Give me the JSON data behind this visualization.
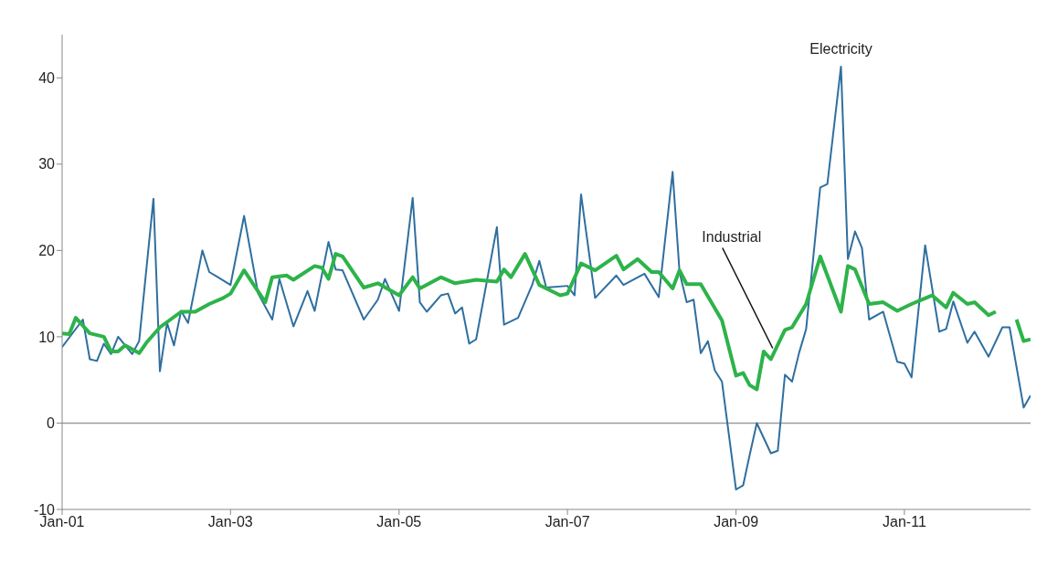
{
  "chart_data": {
    "type": "line",
    "xlim": [
      "2001-01",
      "2012-07"
    ],
    "xticks": [
      {
        "value": "2001-01",
        "label": "Jan-01"
      },
      {
        "value": "2003-01",
        "label": "Jan-03"
      },
      {
        "value": "2005-01",
        "label": "Jan-05"
      },
      {
        "value": "2007-01",
        "label": "Jan-07"
      },
      {
        "value": "2009-01",
        "label": "Jan-09"
      },
      {
        "value": "2011-01",
        "label": "Jan-11"
      }
    ],
    "ylim": [
      -10,
      45
    ],
    "yticks": [
      -10,
      0,
      10,
      20,
      30,
      40
    ],
    "ref_lines": [
      {
        "axis": "y",
        "value": 0,
        "color": "#9a9a9a"
      }
    ],
    "series": [
      {
        "name": "Electricity",
        "color": "#2f6f9f",
        "x": [
          "2001-01",
          "2001-04",
          "2001-05",
          "2001-06",
          "2001-07",
          "2001-08",
          "2001-09",
          "2001-11",
          "2001-12",
          "2002-02",
          "2002-03",
          "2002-04",
          "2002-05",
          "2002-06",
          "2002-07",
          "2002-09",
          "2002-10",
          "2002-11",
          "2003-01",
          "2003-03",
          "2003-05",
          "2003-07",
          "2003-08",
          "2003-10",
          "2003-12",
          "2004-01",
          "2004-03",
          "2004-04",
          "2004-05",
          "2004-08",
          "2004-10",
          "2004-11",
          "2005-01",
          "2005-03",
          "2005-04",
          "2005-05",
          "2005-07",
          "2005-08",
          "2005-09",
          "2005-10",
          "2005-11",
          "2005-12",
          "2006-03",
          "2006-04",
          "2006-06",
          "2006-08",
          "2006-09",
          "2006-10",
          "2007-01",
          "2007-02",
          "2007-03",
          "2007-05",
          "2007-08",
          "2007-09",
          "2007-12",
          "2008-02",
          "2008-04",
          "2008-05",
          "2008-06",
          "2008-07",
          "2008-08",
          "2008-09",
          "2008-10",
          "2008-11",
          "2009-01",
          "2009-02",
          "2009-03",
          "2009-04",
          "2009-06",
          "2009-07",
          "2009-08",
          "2009-09",
          "2009-10",
          "2009-11",
          "2010-01",
          "2010-02",
          "2010-04",
          "2010-05",
          "2010-06",
          "2010-07",
          "2010-08",
          "2010-10",
          "2010-12",
          "2011-01",
          "2011-02",
          "2011-04",
          "2011-06",
          "2011-07",
          "2011-08",
          "2011-10",
          "2011-11",
          "2012-01",
          "2012-03",
          "2012-04",
          "2012-06",
          "2012-07"
        ],
        "values": [
          8.8,
          12,
          7.4,
          7.2,
          9.2,
          8,
          10,
          8,
          9.5,
          26,
          6,
          11.6,
          9,
          13,
          11.6,
          20,
          17.5,
          17,
          16,
          24,
          15,
          12,
          16.7,
          11.2,
          15.3,
          13,
          21,
          17.8,
          17.7,
          12,
          14.3,
          16.7,
          13,
          26.1,
          14,
          12.9,
          14.8,
          15,
          12.7,
          13.4,
          9.2,
          9.7,
          22.7,
          11.4,
          12.2,
          16,
          18.8,
          15.7,
          15.9,
          14.8,
          26.5,
          14.5,
          17.1,
          16,
          17.3,
          14.6,
          29.1,
          17.5,
          14,
          14.3,
          8.1,
          9.5,
          6.1,
          4.8,
          -7.7,
          -7.2,
          -3.7,
          0,
          -3.5,
          -3.2,
          5.6,
          4.8,
          8.1,
          10.9,
          27.3,
          27.7,
          41.3,
          19,
          22.2,
          20.3,
          12,
          12.9,
          7.1,
          6.9,
          5.3,
          20.6,
          10.6,
          10.9,
          14.1,
          9.3,
          10.6,
          7.7,
          11.1,
          11.1,
          1.8,
          3.2
        ]
      },
      {
        "name": "Industrial",
        "color": "#2db34a",
        "x": [
          "2001-01",
          "2001-02",
          "2001-03",
          "2001-05",
          "2001-07",
          "2001-08",
          "2001-09",
          "2001-10",
          "2001-12",
          "2002-01",
          "2002-03",
          "2002-06",
          "2002-08",
          "2002-10",
          "2002-12",
          "2003-01",
          "2003-03",
          "2003-06",
          "2003-07",
          "2003-09",
          "2003-10",
          "2004-01",
          "2004-02",
          "2004-03",
          "2004-04",
          "2004-05",
          "2004-08",
          "2004-10",
          "2005-01",
          "2005-03",
          "2005-04",
          "2005-07",
          "2005-09",
          "2005-12",
          "2006-03",
          "2006-04",
          "2006-05",
          "2006-07",
          "2006-09",
          "2006-12",
          "2007-01",
          "2007-03",
          "2007-05",
          "2007-08",
          "2007-09",
          "2007-11",
          "2008-01",
          "2008-02",
          "2008-04",
          "2008-05",
          "2008-06",
          "2008-08",
          "2008-11",
          "2009-01",
          "2009-02",
          "2009-03",
          "2009-04",
          "2009-05",
          "2009-06",
          "2009-08",
          "2009-09",
          "2009-11",
          "2010-01",
          "2010-04",
          "2010-05",
          "2010-06",
          "2010-08",
          "2010-10",
          "2010-12",
          "2011-02",
          "2011-05",
          "2011-07",
          "2011-08",
          "2011-10",
          "2011-11",
          "2012-01",
          "2012-02",
          "2012-03",
          "2012-05",
          "2012-06",
          "2012-07"
        ],
        "values": [
          10.4,
          10.3,
          12.2,
          10.4,
          10,
          8.3,
          8.3,
          9,
          8.1,
          9.3,
          11.1,
          12.9,
          12.9,
          13.8,
          14.5,
          15,
          17.7,
          14,
          16.9,
          17.1,
          16.6,
          18.2,
          18,
          16.7,
          19.6,
          19.3,
          15.7,
          16.2,
          14.8,
          16.9,
          15.6,
          16.9,
          16.2,
          16.6,
          16.4,
          17.8,
          16.9,
          19.6,
          16,
          14.8,
          15,
          18.5,
          17.7,
          19.4,
          17.8,
          19,
          17.5,
          17.5,
          15.6,
          17.7,
          16.1,
          16.1,
          11.9,
          5.5,
          5.8,
          4.4,
          3.9,
          8.3,
          7.4,
          10.8,
          11.1,
          13.8,
          19.3,
          12.9,
          18.2,
          17.8,
          13.8,
          14,
          13,
          13.8,
          14.8,
          13.4,
          15.1,
          13.8,
          14,
          12.5,
          12.9,
          null,
          12,
          9.5,
          9.7
        ]
      }
    ]
  }
}
